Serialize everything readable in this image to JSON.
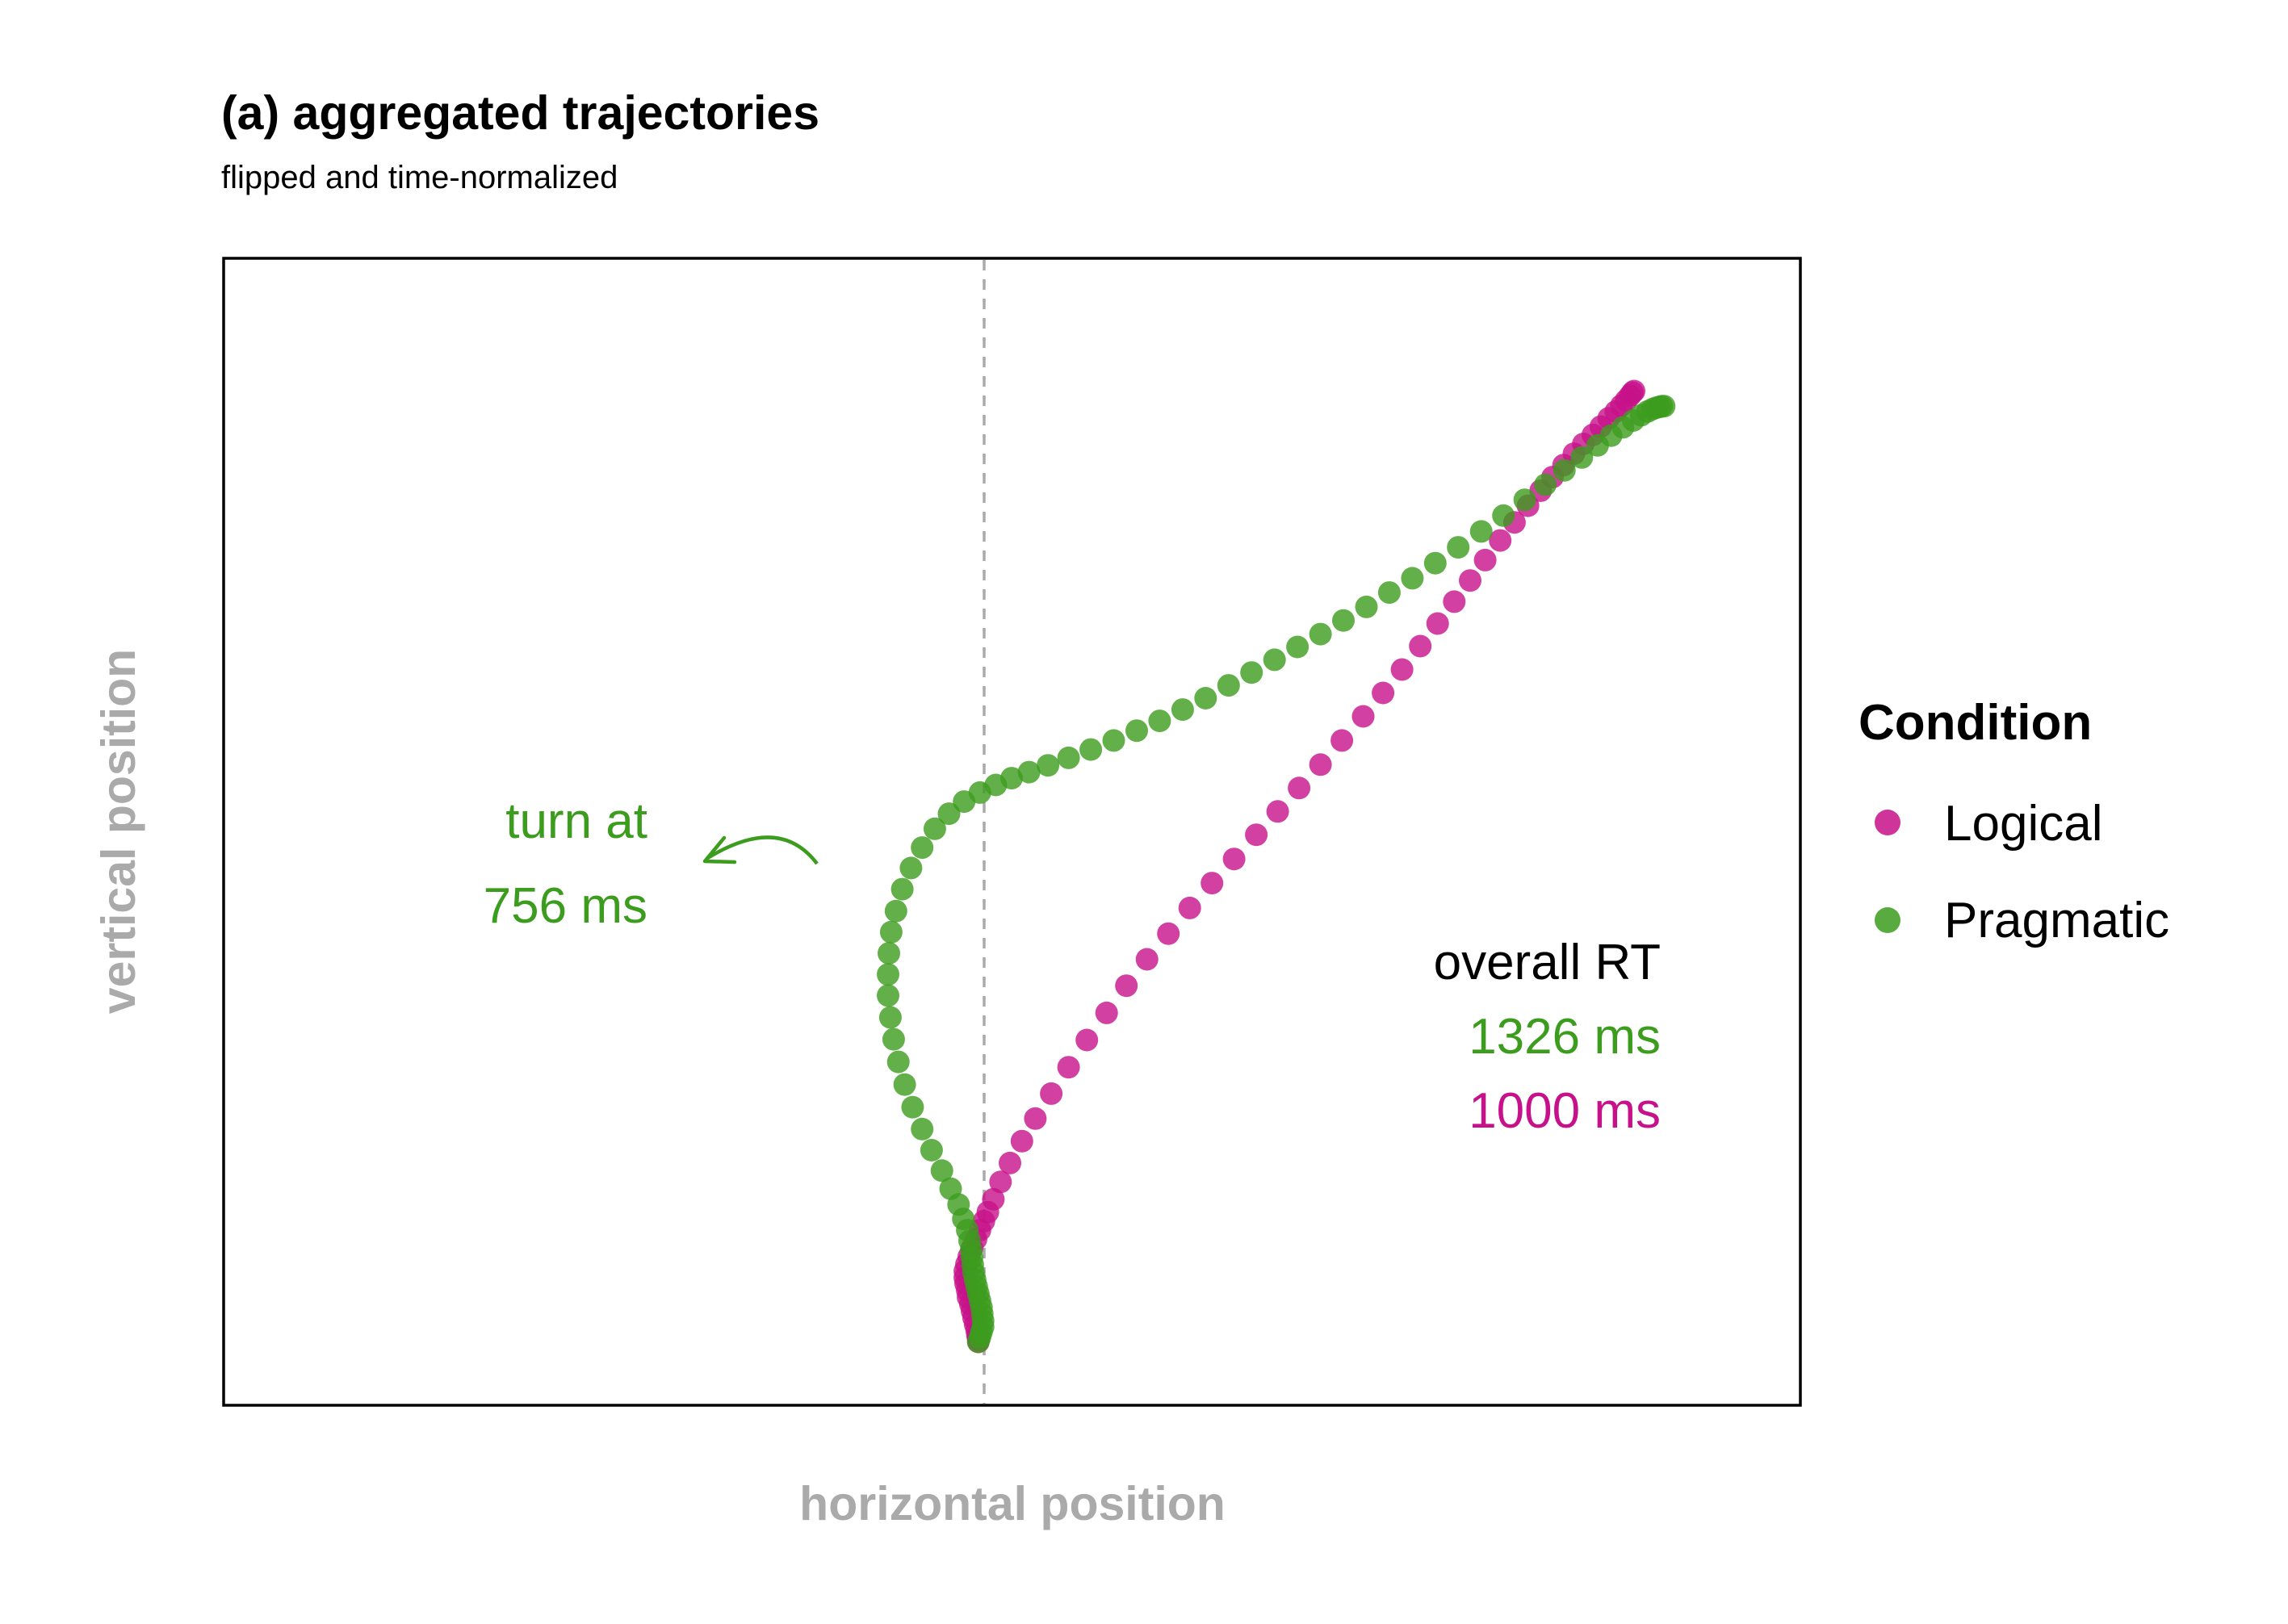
{
  "chart_data": {
    "type": "scatter",
    "title": "(a) aggregated trajectories",
    "subtitle": "flipped and time-normalized",
    "xlabel": "horizontal position",
    "ylabel": "vertical position",
    "xlim": [
      -0.953,
      1.038
    ],
    "ylim": [
      -0.084,
      1.436
    ],
    "reference_line": {
      "x": 0,
      "style": "dashed",
      "color": "#aaaaaa"
    },
    "grid": false,
    "legend": {
      "title": "Condition",
      "position": "right",
      "entries": [
        {
          "label": "Logical",
          "color": "#c7118a"
        },
        {
          "label": "Pragmatic",
          "color": "#3c9c1e"
        }
      ]
    },
    "annotations": {
      "turn_text": [
        "turn at",
        "756 ms"
      ],
      "turn_color": "#3c9c1e",
      "rt_title": "overall RT",
      "rt_pragmatic": "1326 ms",
      "rt_logical": "1000 ms"
    },
    "series": [
      {
        "name": "Logical",
        "color": "#c7118a",
        "points": [
          [
            0.0,
            0.0
          ],
          [
            0.0,
            0.003
          ],
          [
            -0.001,
            0.008
          ],
          [
            -0.002,
            0.015
          ],
          [
            -0.004,
            0.023
          ],
          [
            -0.006,
            0.032
          ],
          [
            -0.008,
            0.041
          ],
          [
            -0.01,
            0.05
          ],
          [
            -0.013,
            0.059
          ],
          [
            -0.014,
            0.068
          ],
          [
            -0.016,
            0.077
          ],
          [
            -0.017,
            0.085
          ],
          [
            -0.017,
            0.094
          ],
          [
            -0.015,
            0.103
          ],
          [
            -0.012,
            0.113
          ],
          [
            -0.008,
            0.124
          ],
          [
            -0.003,
            0.136
          ],
          [
            0.002,
            0.148
          ],
          [
            0.007,
            0.16
          ],
          [
            0.012,
            0.172
          ],
          [
            0.019,
            0.189
          ],
          [
            0.028,
            0.212
          ],
          [
            0.04,
            0.237
          ],
          [
            0.055,
            0.266
          ],
          [
            0.072,
            0.296
          ],
          [
            0.092,
            0.329
          ],
          [
            0.114,
            0.364
          ],
          [
            0.137,
            0.4
          ],
          [
            0.162,
            0.436
          ],
          [
            0.187,
            0.472
          ],
          [
            0.213,
            0.507
          ],
          [
            0.24,
            0.541
          ],
          [
            0.267,
            0.575
          ],
          [
            0.295,
            0.608
          ],
          [
            0.323,
            0.64
          ],
          [
            0.351,
            0.672
          ],
          [
            0.378,
            0.703
          ],
          [
            0.405,
            0.734
          ],
          [
            0.432,
            0.765
          ],
          [
            0.459,
            0.797
          ],
          [
            0.486,
            0.829
          ],
          [
            0.511,
            0.86
          ],
          [
            0.535,
            0.891
          ],
          [
            0.558,
            0.922
          ],
          [
            0.58,
            0.952
          ],
          [
            0.601,
            0.981
          ],
          [
            0.621,
            1.009
          ],
          [
            0.64,
            1.036
          ],
          [
            0.659,
            1.062
          ],
          [
            0.677,
            1.086
          ],
          [
            0.694,
            1.108
          ],
          [
            0.71,
            1.128
          ],
          [
            0.725,
            1.146
          ],
          [
            0.739,
            1.162
          ],
          [
            0.752,
            1.177
          ],
          [
            0.764,
            1.19
          ],
          [
            0.776,
            1.202
          ],
          [
            0.786,
            1.213
          ],
          [
            0.796,
            1.224
          ],
          [
            0.805,
            1.233
          ],
          [
            0.812,
            1.241
          ],
          [
            0.818,
            1.248
          ],
          [
            0.823,
            1.254
          ],
          [
            0.826,
            1.258
          ],
          [
            0.828,
            1.26
          ]
        ]
      },
      {
        "name": "Pragmatic",
        "color": "#3c9c1e",
        "points": [
          [
            0.0,
            0.0
          ],
          [
            0.002,
            0.006
          ],
          [
            0.004,
            0.013
          ],
          [
            0.006,
            0.02
          ],
          [
            0.006,
            0.028
          ],
          [
            0.005,
            0.037
          ],
          [
            0.004,
            0.046
          ],
          [
            0.002,
            0.055
          ],
          [
            0.0,
            0.064
          ],
          [
            -0.002,
            0.073
          ],
          [
            -0.004,
            0.082
          ],
          [
            -0.006,
            0.092
          ],
          [
            -0.007,
            0.102
          ],
          [
            -0.008,
            0.112
          ],
          [
            -0.009,
            0.122
          ],
          [
            -0.011,
            0.134
          ],
          [
            -0.014,
            0.148
          ],
          [
            -0.019,
            0.163
          ],
          [
            -0.025,
            0.182
          ],
          [
            -0.035,
            0.203
          ],
          [
            -0.046,
            0.227
          ],
          [
            -0.059,
            0.254
          ],
          [
            -0.071,
            0.282
          ],
          [
            -0.083,
            0.311
          ],
          [
            -0.093,
            0.341
          ],
          [
            -0.101,
            0.371
          ],
          [
            -0.107,
            0.401
          ],
          [
            -0.111,
            0.43
          ],
          [
            -0.114,
            0.459
          ],
          [
            -0.114,
            0.487
          ],
          [
            -0.113,
            0.515
          ],
          [
            -0.11,
            0.543
          ],
          [
            -0.104,
            0.571
          ],
          [
            -0.096,
            0.6
          ],
          [
            -0.085,
            0.628
          ],
          [
            -0.071,
            0.655
          ],
          [
            -0.055,
            0.68
          ],
          [
            -0.037,
            0.7
          ],
          [
            -0.018,
            0.716
          ],
          [
            0.002,
            0.728
          ],
          [
            0.022,
            0.738
          ],
          [
            0.042,
            0.747
          ],
          [
            0.064,
            0.755
          ],
          [
            0.088,
            0.764
          ],
          [
            0.114,
            0.774
          ],
          [
            0.142,
            0.785
          ],
          [
            0.171,
            0.797
          ],
          [
            0.2,
            0.81
          ],
          [
            0.229,
            0.823
          ],
          [
            0.258,
            0.838
          ],
          [
            0.287,
            0.853
          ],
          [
            0.316,
            0.87
          ],
          [
            0.345,
            0.887
          ],
          [
            0.374,
            0.904
          ],
          [
            0.403,
            0.921
          ],
          [
            0.432,
            0.938
          ],
          [
            0.461,
            0.956
          ],
          [
            0.49,
            0.974
          ],
          [
            0.519,
            0.993
          ],
          [
            0.548,
            1.012
          ],
          [
            0.577,
            1.032
          ],
          [
            0.606,
            1.053
          ],
          [
            0.635,
            1.074
          ],
          [
            0.663,
            1.095
          ],
          [
            0.69,
            1.116
          ],
          [
            0.716,
            1.136
          ],
          [
            0.74,
            1.155
          ],
          [
            0.762,
            1.172
          ],
          [
            0.782,
            1.188
          ],
          [
            0.799,
            1.201
          ],
          [
            0.814,
            1.212
          ],
          [
            0.827,
            1.221
          ],
          [
            0.837,
            1.228
          ],
          [
            0.845,
            1.233
          ],
          [
            0.851,
            1.236
          ],
          [
            0.856,
            1.238
          ],
          [
            0.86,
            1.239
          ],
          [
            0.863,
            1.24
          ],
          [
            0.866,
            1.24
          ]
        ]
      }
    ]
  }
}
